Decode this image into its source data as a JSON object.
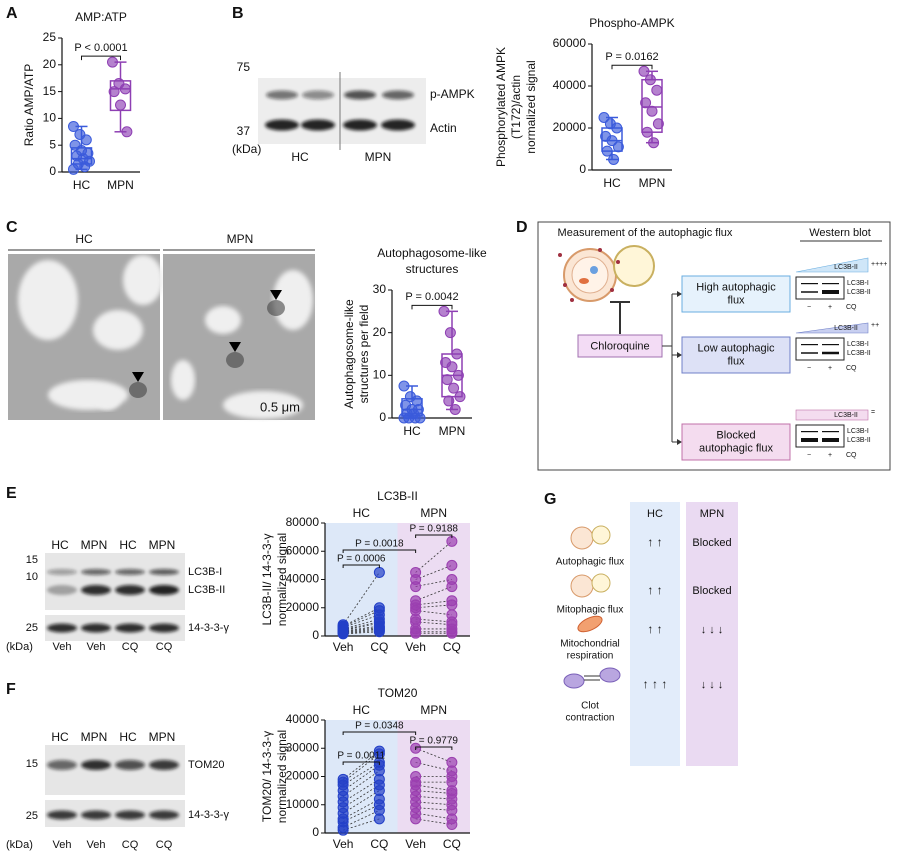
{
  "panel_labels": [
    "A",
    "B",
    "C",
    "D",
    "E",
    "F",
    "G"
  ],
  "chart_data": [
    {
      "type": "box",
      "title": [
        "AMP:ATP"
      ],
      "ylabel": [
        "Ratio AMP/ATP"
      ],
      "ylim": [
        0,
        25
      ],
      "yticks": [
        0,
        5,
        10,
        15,
        20,
        25
      ],
      "groups": [
        {
          "name": "HC",
          "color": "#3b5bdb",
          "points": [
            8.5,
            7,
            6,
            5,
            4,
            3.5,
            3,
            2.5,
            2,
            1.5,
            1,
            0.5
          ],
          "min": 0.5,
          "q1": 1.5,
          "median": 2.5,
          "q3": 4.5,
          "max": 8.5
        },
        {
          "name": "MPN",
          "color": "#8e3fb3",
          "points": [
            20.5,
            16.5,
            15.5,
            15,
            12.5,
            7.5
          ],
          "min": 7.5,
          "q1": 11.5,
          "median": 15.5,
          "q3": 17,
          "max": 20.5
        }
      ],
      "annotations": [
        "P < 0.0001"
      ]
    },
    {
      "type": "box",
      "title": [
        "Phospho-AMPK"
      ],
      "ylabel": [
        "Phosphorylated AMPK",
        "(T172)/actin",
        "normalized signal"
      ],
      "ylim": [
        0,
        60000
      ],
      "yticks": [
        0,
        20000,
        40000,
        60000
      ],
      "groups": [
        {
          "name": "HC",
          "color": "#3b5bdb",
          "points": [
            25000,
            22000,
            20000,
            16000,
            14000,
            11000,
            9000,
            5000
          ],
          "min": 5000,
          "q1": 9000,
          "median": 14000,
          "q3": 20000,
          "max": 25000
        },
        {
          "name": "MPN",
          "color": "#8e3fb3",
          "points": [
            47000,
            43000,
            38000,
            32000,
            28000,
            22000,
            18000,
            13000
          ],
          "min": 13000,
          "q1": 18000,
          "median": 30000,
          "q3": 43000,
          "max": 47000
        }
      ],
      "annotations": [
        "P = 0.0162"
      ]
    },
    {
      "type": "box",
      "title": [
        "Autophagosome-like",
        "structures"
      ],
      "ylabel": [
        "Autophagosome-like",
        "structures per field"
      ],
      "ylim": [
        0,
        30
      ],
      "yticks": [
        0,
        10,
        20,
        30
      ],
      "groups": [
        {
          "name": "HC",
          "color": "#3b5bdb",
          "points": [
            7.5,
            5,
            4,
            3,
            2,
            2,
            1,
            1,
            0,
            0,
            0,
            0
          ],
          "min": 0,
          "q1": 0.5,
          "median": 2,
          "q3": 4.5,
          "max": 7.5
        },
        {
          "name": "MPN",
          "color": "#8e3fb3",
          "points": [
            25,
            20,
            15,
            13,
            12,
            10,
            9,
            7,
            5,
            4,
            2
          ],
          "min": 2,
          "q1": 5,
          "median": 10,
          "q3": 15,
          "max": 25
        }
      ],
      "annotations": [
        "P = 0.0042"
      ]
    },
    {
      "type": "paired",
      "title": [
        "LC3B-II"
      ],
      "ylabel": [
        "LC3B-II/ 14-3-3-γ",
        "normalized signal"
      ],
      "ylim": [
        0,
        80000
      ],
      "yticks": [
        0,
        20000,
        40000,
        60000,
        80000
      ],
      "categories": [
        "Veh",
        "CQ",
        "Veh",
        "CQ"
      ],
      "groups": [
        {
          "name": "HC",
          "color": "#2340c8",
          "background": "#dde8f8",
          "veh": [
            8000,
            7000,
            6500,
            6000,
            5000,
            4500,
            4000,
            3500,
            3000,
            2500,
            2000,
            1500
          ],
          "cq": [
            45000,
            20000,
            18000,
            15000,
            12000,
            10000,
            9000,
            7000,
            6000,
            5000,
            4000,
            3000
          ]
        },
        {
          "name": "MPN",
          "color": "#9b3fb0",
          "background": "#ecdcf2",
          "veh": [
            45000,
            40000,
            35000,
            25000,
            22000,
            20000,
            18000,
            12000,
            10000,
            5000,
            3000,
            2000
          ],
          "cq": [
            67000,
            50000,
            40000,
            35000,
            25000,
            22000,
            15000,
            10000,
            8000,
            5000,
            3000,
            2000
          ]
        }
      ],
      "annotations": [
        "P = 0.0006",
        "P = 0.0018",
        "P = 0.9188"
      ]
    },
    {
      "type": "paired",
      "title": [
        "TOM20"
      ],
      "ylabel": [
        "TOM20/ 14-3-3-γ",
        "normalized signal"
      ],
      "ylim": [
        0,
        40000
      ],
      "yticks": [
        0,
        10000,
        20000,
        30000,
        40000
      ],
      "categories": [
        "Veh",
        "CQ",
        "Veh",
        "CQ"
      ],
      "groups": [
        {
          "name": "HC",
          "color": "#2340c8",
          "background": "#dde8f8",
          "veh": [
            19000,
            18000,
            17000,
            15000,
            13000,
            11000,
            9000,
            7000,
            5000,
            4000,
            2000,
            1000
          ],
          "cq": [
            29000,
            28000,
            25000,
            24000,
            22000,
            19000,
            17000,
            15000,
            12000,
            10000,
            8000,
            5000
          ]
        },
        {
          "name": "MPN",
          "color": "#9b3fb0",
          "background": "#ecdcf2",
          "veh": [
            30000,
            25000,
            20000,
            18000,
            17000,
            15000,
            13000,
            11000,
            9000,
            7000,
            5000
          ],
          "cq": [
            25000,
            22000,
            20000,
            18000,
            15000,
            14000,
            12000,
            10000,
            8000,
            5000,
            3000
          ]
        }
      ],
      "annotations": [
        "P = 0.0011",
        "P = 0.0348",
        "P = 0.9779"
      ]
    }
  ],
  "blot_b": {
    "markers": [
      "75",
      "37"
    ],
    "unit": "(kDa)",
    "bands": [
      "p-AMPK",
      "Actin"
    ],
    "groups": [
      "HC",
      "MPN"
    ]
  },
  "em_c": {
    "groups": [
      "HC",
      "MPN"
    ],
    "scale": "0.5 μm"
  },
  "diagram_d": {
    "title": "Measurement of the autophagic flux",
    "western_blot": "Western blot",
    "drug": "Chloroquine",
    "outcomes": [
      {
        "label": [
          "High autophagic",
          "flux"
        ],
        "level": "++++"
      },
      {
        "label": [
          "Low autophagic",
          "flux"
        ],
        "level": "++"
      },
      {
        "label": [
          "Blocked",
          "autophagic flux"
        ],
        "level": "="
      }
    ],
    "blot_marker": "LC3B-II",
    "bands": [
      "LC3B-I",
      "LC3B-II"
    ],
    "lanes": [
      "−",
      "+"
    ],
    "treatment": "CQ"
  },
  "blot_e": {
    "lanes": [
      "HC",
      "MPN",
      "HC",
      "MPN"
    ],
    "markers": [
      "15",
      "10",
      "25"
    ],
    "unit": "(kDa)",
    "bands": [
      "LC3B-I",
      "LC3B-II",
      "14-3-3-γ"
    ],
    "treatments": [
      "Veh",
      "Veh",
      "CQ",
      "CQ"
    ]
  },
  "blot_f": {
    "lanes": [
      "HC",
      "MPN",
      "HC",
      "MPN"
    ],
    "markers": [
      "15",
      "25"
    ],
    "unit": "(kDa)",
    "bands": [
      "TOM20",
      "14-3-3-γ"
    ],
    "treatments": [
      "Veh",
      "Veh",
      "CQ",
      "CQ"
    ]
  },
  "table_g": {
    "columns": [
      "HC",
      "MPN"
    ],
    "rows": [
      {
        "label": [
          "Autophagic flux"
        ],
        "cells": [
          "↑ ↑",
          "Blocked"
        ]
      },
      {
        "label": [
          "Mitophagic flux"
        ],
        "cells": [
          "↑ ↑",
          "Blocked"
        ]
      },
      {
        "label": [
          "Mitochondrial",
          "respiration"
        ],
        "cells": [
          "↑ ↑",
          "↓ ↓ ↓"
        ]
      },
      {
        "label": [
          "Clot",
          "contraction"
        ],
        "cells": [
          "↑ ↑ ↑",
          "↓ ↓ ↓"
        ]
      }
    ]
  }
}
